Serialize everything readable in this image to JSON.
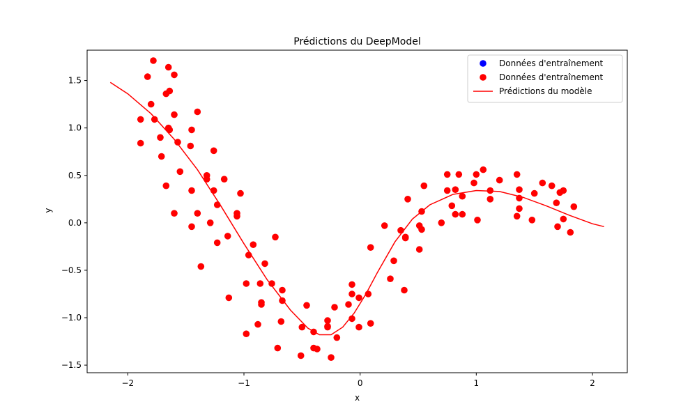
{
  "chart_data": {
    "type": "scatter",
    "title": "Prédictions du DeepModel",
    "xlabel": "x",
    "ylabel": "y",
    "xlim": [
      -2.35,
      2.3
    ],
    "ylim": [
      -1.58,
      1.82
    ],
    "xticks": [
      -2,
      -1,
      0,
      1,
      2
    ],
    "xtick_labels": [
      "−2",
      "−1",
      "0",
      "1",
      "2"
    ],
    "yticks": [
      -1.5,
      -1.0,
      -0.5,
      0.0,
      0.5,
      1.0,
      1.5
    ],
    "ytick_labels": [
      "−1.5",
      "−1.0",
      "−0.5",
      "0.0",
      "0.5",
      "1.0",
      "1.5"
    ],
    "grid": false,
    "legend_position": "top-right",
    "colors": {
      "train_blue": "#0000ff",
      "train_red": "#ff0000",
      "prediction": "#ff0000"
    },
    "legend": [
      {
        "label": "Données d'entraînement",
        "marker": "dot",
        "color": "#0000ff"
      },
      {
        "label": "Données d'entraînement",
        "marker": "dot",
        "color": "#ff0000"
      },
      {
        "label": "Prédictions du modèle",
        "marker": "line",
        "color": "#ff0000"
      }
    ],
    "series": [
      {
        "name": "Données d'entraînement",
        "kind": "scatter",
        "color": "#0000ff",
        "points": []
      },
      {
        "name": "Données d'entraînement",
        "kind": "scatter",
        "color": "#ff0000",
        "points": [
          [
            -1.89,
            1.09
          ],
          [
            -1.89,
            0.84
          ],
          [
            -1.83,
            1.54
          ],
          [
            -1.8,
            1.25
          ],
          [
            -1.78,
            1.71
          ],
          [
            -1.77,
            1.09
          ],
          [
            -1.72,
            0.9
          ],
          [
            -1.71,
            0.7
          ],
          [
            -1.67,
            1.36
          ],
          [
            -1.67,
            0.39
          ],
          [
            -1.65,
            1.64
          ],
          [
            -1.65,
            1.0
          ],
          [
            -1.64,
            1.39
          ],
          [
            -1.64,
            0.98
          ],
          [
            -1.6,
            1.56
          ],
          [
            -1.6,
            1.14
          ],
          [
            -1.6,
            0.1
          ],
          [
            -1.57,
            0.85
          ],
          [
            -1.55,
            0.54
          ],
          [
            -1.46,
            0.81
          ],
          [
            -1.45,
            0.98
          ],
          [
            -1.45,
            0.34
          ],
          [
            -1.45,
            -0.04
          ],
          [
            -1.4,
            1.17
          ],
          [
            -1.4,
            0.1
          ],
          [
            -1.37,
            -0.46
          ],
          [
            -1.32,
            0.5
          ],
          [
            -1.32,
            0.46
          ],
          [
            -1.29,
            0.0
          ],
          [
            -1.26,
            0.76
          ],
          [
            -1.26,
            0.34
          ],
          [
            -1.23,
            0.19
          ],
          [
            -1.23,
            -0.21
          ],
          [
            -1.17,
            0.46
          ],
          [
            -1.14,
            -0.14
          ],
          [
            -1.13,
            -0.79
          ],
          [
            -1.06,
            0.1
          ],
          [
            -1.06,
            0.07
          ],
          [
            -1.03,
            0.31
          ],
          [
            -0.98,
            -0.64
          ],
          [
            -0.98,
            -1.17
          ],
          [
            -0.96,
            -0.34
          ],
          [
            -0.92,
            -0.23
          ],
          [
            -0.88,
            -1.07
          ],
          [
            -0.86,
            -0.64
          ],
          [
            -0.85,
            -0.84
          ],
          [
            -0.85,
            -0.86
          ],
          [
            -0.82,
            -0.43
          ],
          [
            -0.76,
            -0.64
          ],
          [
            -0.73,
            -0.15
          ],
          [
            -0.71,
            -1.32
          ],
          [
            -0.68,
            -1.04
          ],
          [
            -0.67,
            -0.71
          ],
          [
            -0.67,
            -0.82
          ],
          [
            -0.51,
            -1.4
          ],
          [
            -0.5,
            -1.1
          ],
          [
            -0.46,
            -0.87
          ],
          [
            -0.4,
            -1.32
          ],
          [
            -0.4,
            -1.15
          ],
          [
            -0.37,
            -1.33
          ],
          [
            -0.28,
            -1.03
          ],
          [
            -0.28,
            -1.1
          ],
          [
            -0.28,
            -1.09
          ],
          [
            -0.25,
            -1.42
          ],
          [
            -0.22,
            -0.89
          ],
          [
            -0.2,
            -1.21
          ],
          [
            -0.1,
            -0.86
          ],
          [
            -0.07,
            -0.65
          ],
          [
            -0.07,
            -0.75
          ],
          [
            -0.07,
            -1.01
          ],
          [
            -0.01,
            -1.1
          ],
          [
            -0.01,
            -0.79
          ],
          [
            0.07,
            -0.75
          ],
          [
            0.09,
            -1.06
          ],
          [
            0.09,
            -0.26
          ],
          [
            0.21,
            -0.03
          ],
          [
            0.26,
            -0.59
          ],
          [
            0.29,
            -0.4
          ],
          [
            0.35,
            -0.08
          ],
          [
            0.38,
            -0.71
          ],
          [
            0.39,
            -0.15
          ],
          [
            0.39,
            -0.16
          ],
          [
            0.41,
            0.25
          ],
          [
            0.51,
            -0.28
          ],
          [
            0.51,
            -0.03
          ],
          [
            0.53,
            0.12
          ],
          [
            0.53,
            -0.07
          ],
          [
            0.55,
            0.39
          ],
          [
            0.7,
            0.0
          ],
          [
            0.75,
            0.34
          ],
          [
            0.75,
            0.51
          ],
          [
            0.79,
            0.18
          ],
          [
            0.82,
            0.35
          ],
          [
            0.82,
            0.09
          ],
          [
            0.85,
            0.51
          ],
          [
            0.88,
            0.09
          ],
          [
            0.88,
            0.28
          ],
          [
            0.98,
            0.42
          ],
          [
            1.0,
            0.51
          ],
          [
            1.01,
            0.03
          ],
          [
            1.06,
            0.56
          ],
          [
            1.12,
            0.34
          ],
          [
            1.12,
            0.25
          ],
          [
            1.2,
            0.45
          ],
          [
            1.35,
            0.51
          ],
          [
            1.35,
            0.07
          ],
          [
            1.37,
            0.35
          ],
          [
            1.37,
            0.26
          ],
          [
            1.37,
            0.15
          ],
          [
            1.48,
            0.03
          ],
          [
            1.5,
            0.31
          ],
          [
            1.57,
            0.42
          ],
          [
            1.65,
            0.39
          ],
          [
            1.69,
            0.21
          ],
          [
            1.7,
            -0.04
          ],
          [
            1.72,
            0.32
          ],
          [
            1.75,
            0.34
          ],
          [
            1.75,
            0.04
          ],
          [
            1.81,
            -0.1
          ],
          [
            1.84,
            0.17
          ]
        ]
      },
      {
        "name": "Prédictions du modèle",
        "kind": "line",
        "color": "#ff0000",
        "points": [
          [
            -2.15,
            1.48
          ],
          [
            -2.0,
            1.36
          ],
          [
            -1.8,
            1.15
          ],
          [
            -1.6,
            0.88
          ],
          [
            -1.4,
            0.56
          ],
          [
            -1.2,
            0.18
          ],
          [
            -1.0,
            -0.22
          ],
          [
            -0.8,
            -0.6
          ],
          [
            -0.6,
            -0.92
          ],
          [
            -0.45,
            -1.11
          ],
          [
            -0.35,
            -1.18
          ],
          [
            -0.25,
            -1.18
          ],
          [
            -0.15,
            -1.1
          ],
          [
            -0.05,
            -0.95
          ],
          [
            0.05,
            -0.75
          ],
          [
            0.15,
            -0.52
          ],
          [
            0.3,
            -0.2
          ],
          [
            0.45,
            0.04
          ],
          [
            0.6,
            0.19
          ],
          [
            0.8,
            0.3
          ],
          [
            1.0,
            0.34
          ],
          [
            1.2,
            0.33
          ],
          [
            1.4,
            0.27
          ],
          [
            1.6,
            0.18
          ],
          [
            1.8,
            0.08
          ],
          [
            2.0,
            -0.01
          ],
          [
            2.1,
            -0.04
          ]
        ]
      }
    ]
  }
}
